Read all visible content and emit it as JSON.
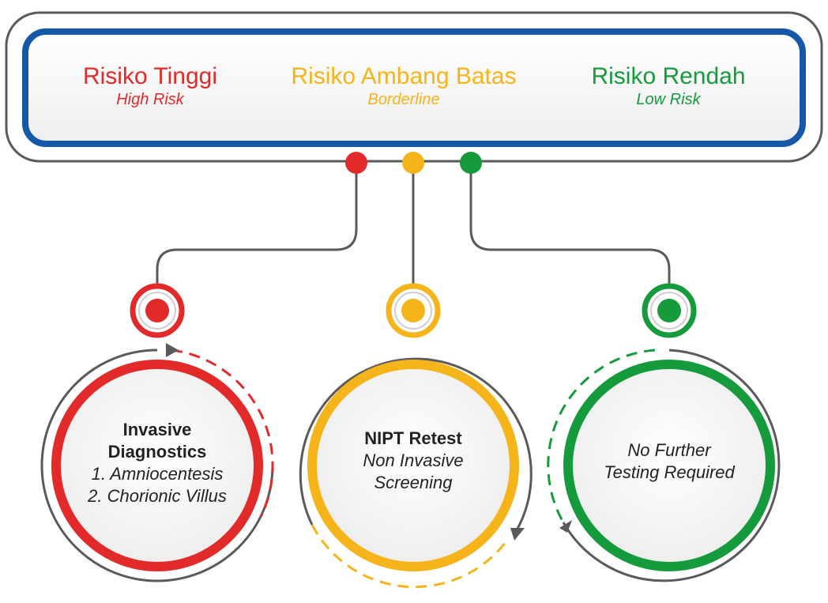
{
  "colors": {
    "high": "#e32a2a",
    "border": "#f4b41a",
    "low": "#159a3c",
    "frame": "#5a5a5a",
    "header_border": "#1558a8"
  },
  "levels": [
    {
      "id": "high",
      "title": "Risiko Tinggi",
      "subtitle": "High Risk"
    },
    {
      "id": "border",
      "title": "Risiko Ambang Batas",
      "subtitle": "Borderline"
    },
    {
      "id": "low",
      "title": "Risiko Rendah",
      "subtitle": "Low Risk"
    }
  ],
  "outcomes": [
    {
      "id": "high",
      "title": "Invasive",
      "title2": "Diagnostics",
      "line1": "1. Amniocentesis",
      "line2": "2. Chorionic Villus"
    },
    {
      "id": "border",
      "title": "NIPT Retest",
      "line1": "Non Invasive",
      "line2": "Screening"
    },
    {
      "id": "low",
      "line1": "No Further",
      "line2": "Testing Required"
    }
  ]
}
